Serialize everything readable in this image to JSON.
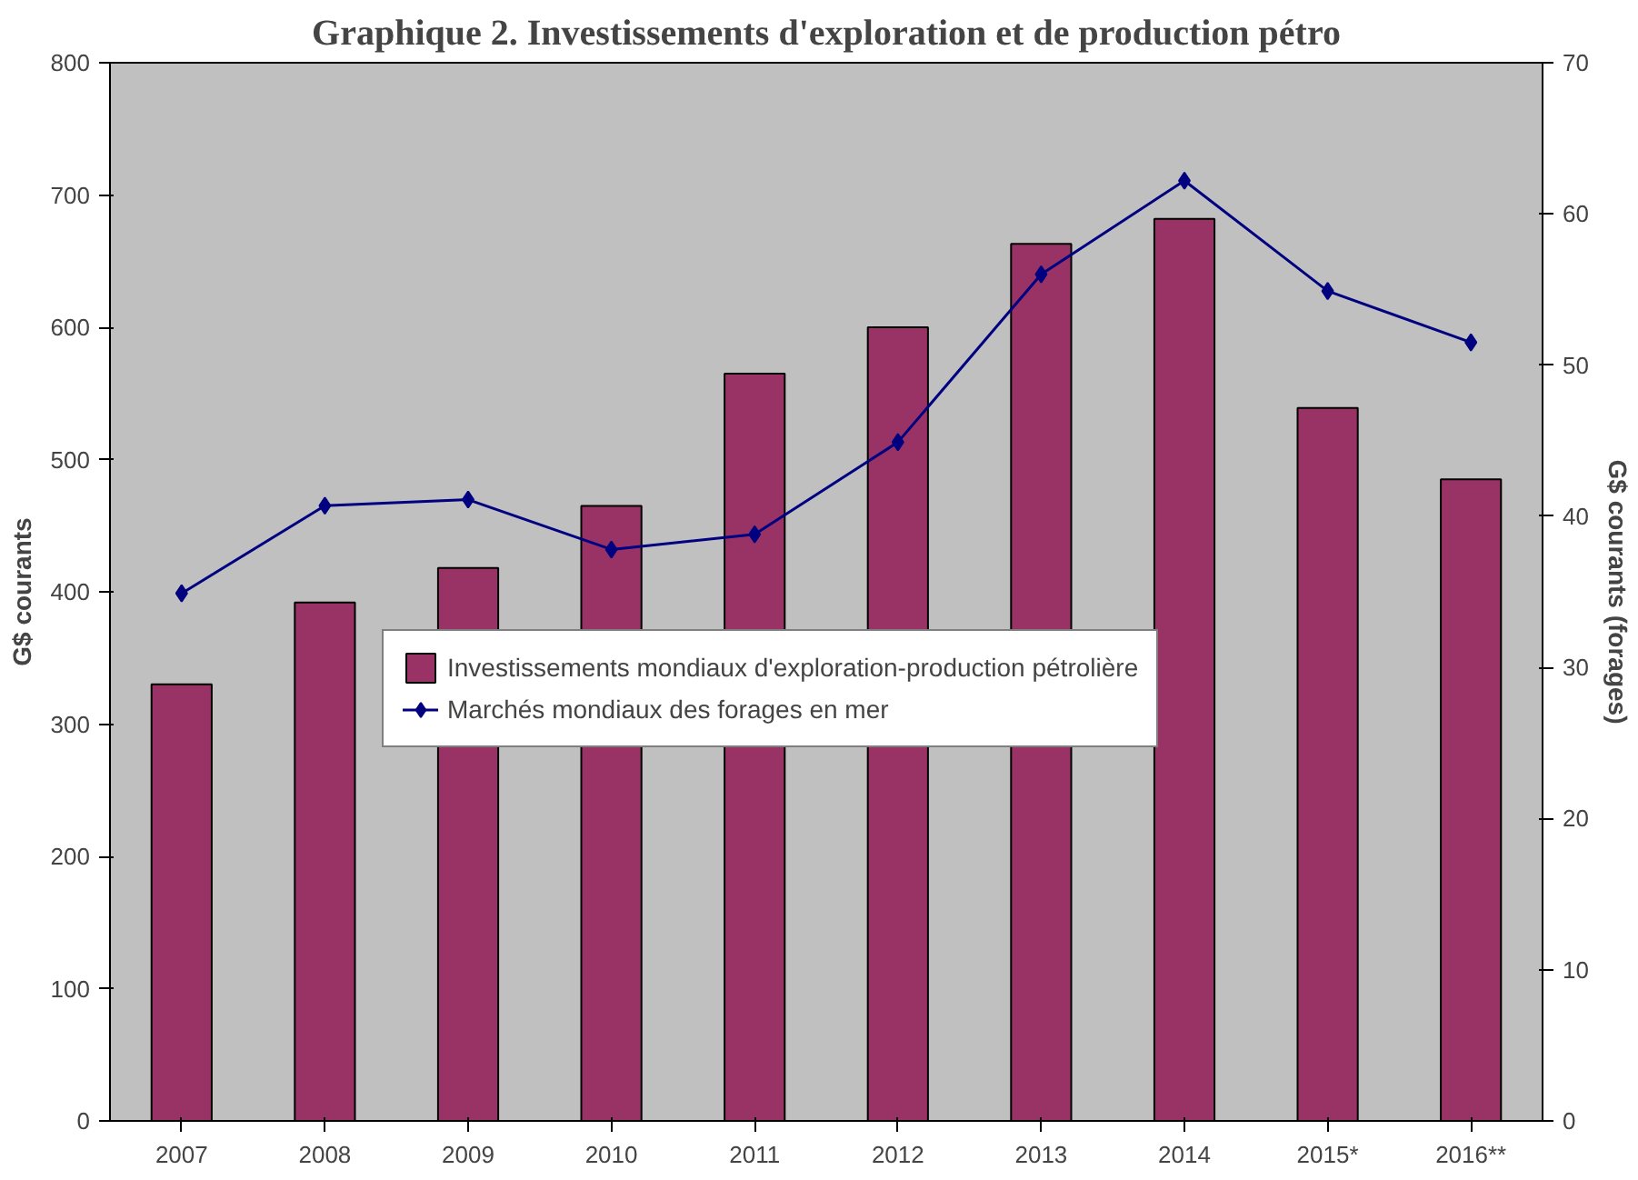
{
  "chart_data": {
    "type": "bar",
    "title": "Graphique 2. Investissements d'exploration et de production pétro",
    "categories": [
      "2007",
      "2008",
      "2009",
      "2010",
      "2011",
      "2012",
      "2013",
      "2014",
      "2015*",
      "2016**"
    ],
    "series": [
      {
        "name": "Investissements mondiaux d'exploration-production pétrolière",
        "color": "#993366",
        "values": [
          330,
          392,
          418,
          465,
          565,
          600,
          663,
          682,
          539,
          485
        ]
      },
      {
        "name": "Marchés mondiaux des forages en mer",
        "color": "#000080",
        "type": "line",
        "axis": "y2",
        "marker": "diamond",
        "values": [
          34.9,
          40.7,
          41.1,
          37.8,
          38.8,
          44.9,
          56.0,
          62.2,
          54.9,
          51.5
        ]
      }
    ],
    "ylabel": "G$ courants",
    "y2label": "G$ courants (forages)",
    "ylim": [
      0,
      800
    ],
    "yticks": [
      0,
      100,
      200,
      300,
      400,
      500,
      600,
      700,
      800
    ],
    "y2lim": [
      0,
      70
    ],
    "y2ticks": [
      0,
      10,
      20,
      30,
      40,
      50,
      60,
      70
    ],
    "legend": "center",
    "grid": false
  }
}
